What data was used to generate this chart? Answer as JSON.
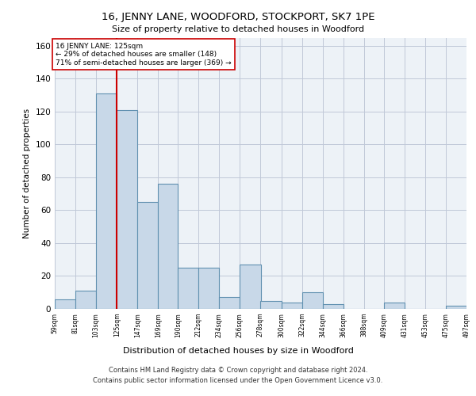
{
  "title": "16, JENNY LANE, WOODFORD, STOCKPORT, SK7 1PE",
  "subtitle": "Size of property relative to detached houses in Woodford",
  "xlabel": "Distribution of detached houses by size in Woodford",
  "ylabel": "Number of detached properties",
  "footer_line1": "Contains HM Land Registry data © Crown copyright and database right 2024.",
  "footer_line2": "Contains public sector information licensed under the Open Government Licence v3.0.",
  "annotation_line1": "16 JENNY LANE: 125sqm",
  "annotation_line2": "← 29% of detached houses are smaller (148)",
  "annotation_line3": "71% of semi-detached houses are larger (369) →",
  "bar_edges": [
    59,
    81,
    103,
    125,
    147,
    169,
    190,
    212,
    234,
    256,
    278,
    300,
    322,
    344,
    366,
    388,
    409,
    431,
    453,
    475,
    497
  ],
  "bar_heights": [
    6,
    11,
    131,
    121,
    65,
    76,
    25,
    25,
    7,
    27,
    5,
    4,
    10,
    3,
    0,
    0,
    4,
    0,
    0,
    2
  ],
  "tick_labels": [
    "59sqm",
    "81sqm",
    "103sqm",
    "125sqm",
    "147sqm",
    "169sqm",
    "190sqm",
    "212sqm",
    "234sqm",
    "256sqm",
    "278sqm",
    "300sqm",
    "322sqm",
    "344sqm",
    "366sqm",
    "388sqm",
    "409sqm",
    "431sqm",
    "453sqm",
    "475sqm",
    "497sqm"
  ],
  "red_line_x": 125,
  "bar_color": "#c8d8e8",
  "bar_edge_color": "#6090b0",
  "red_line_color": "#cc0000",
  "grid_color": "#c0c8d8",
  "background_color": "#edf2f7",
  "ylim": [
    0,
    165
  ],
  "yticks": [
    0,
    20,
    40,
    60,
    80,
    100,
    120,
    140,
    160
  ]
}
